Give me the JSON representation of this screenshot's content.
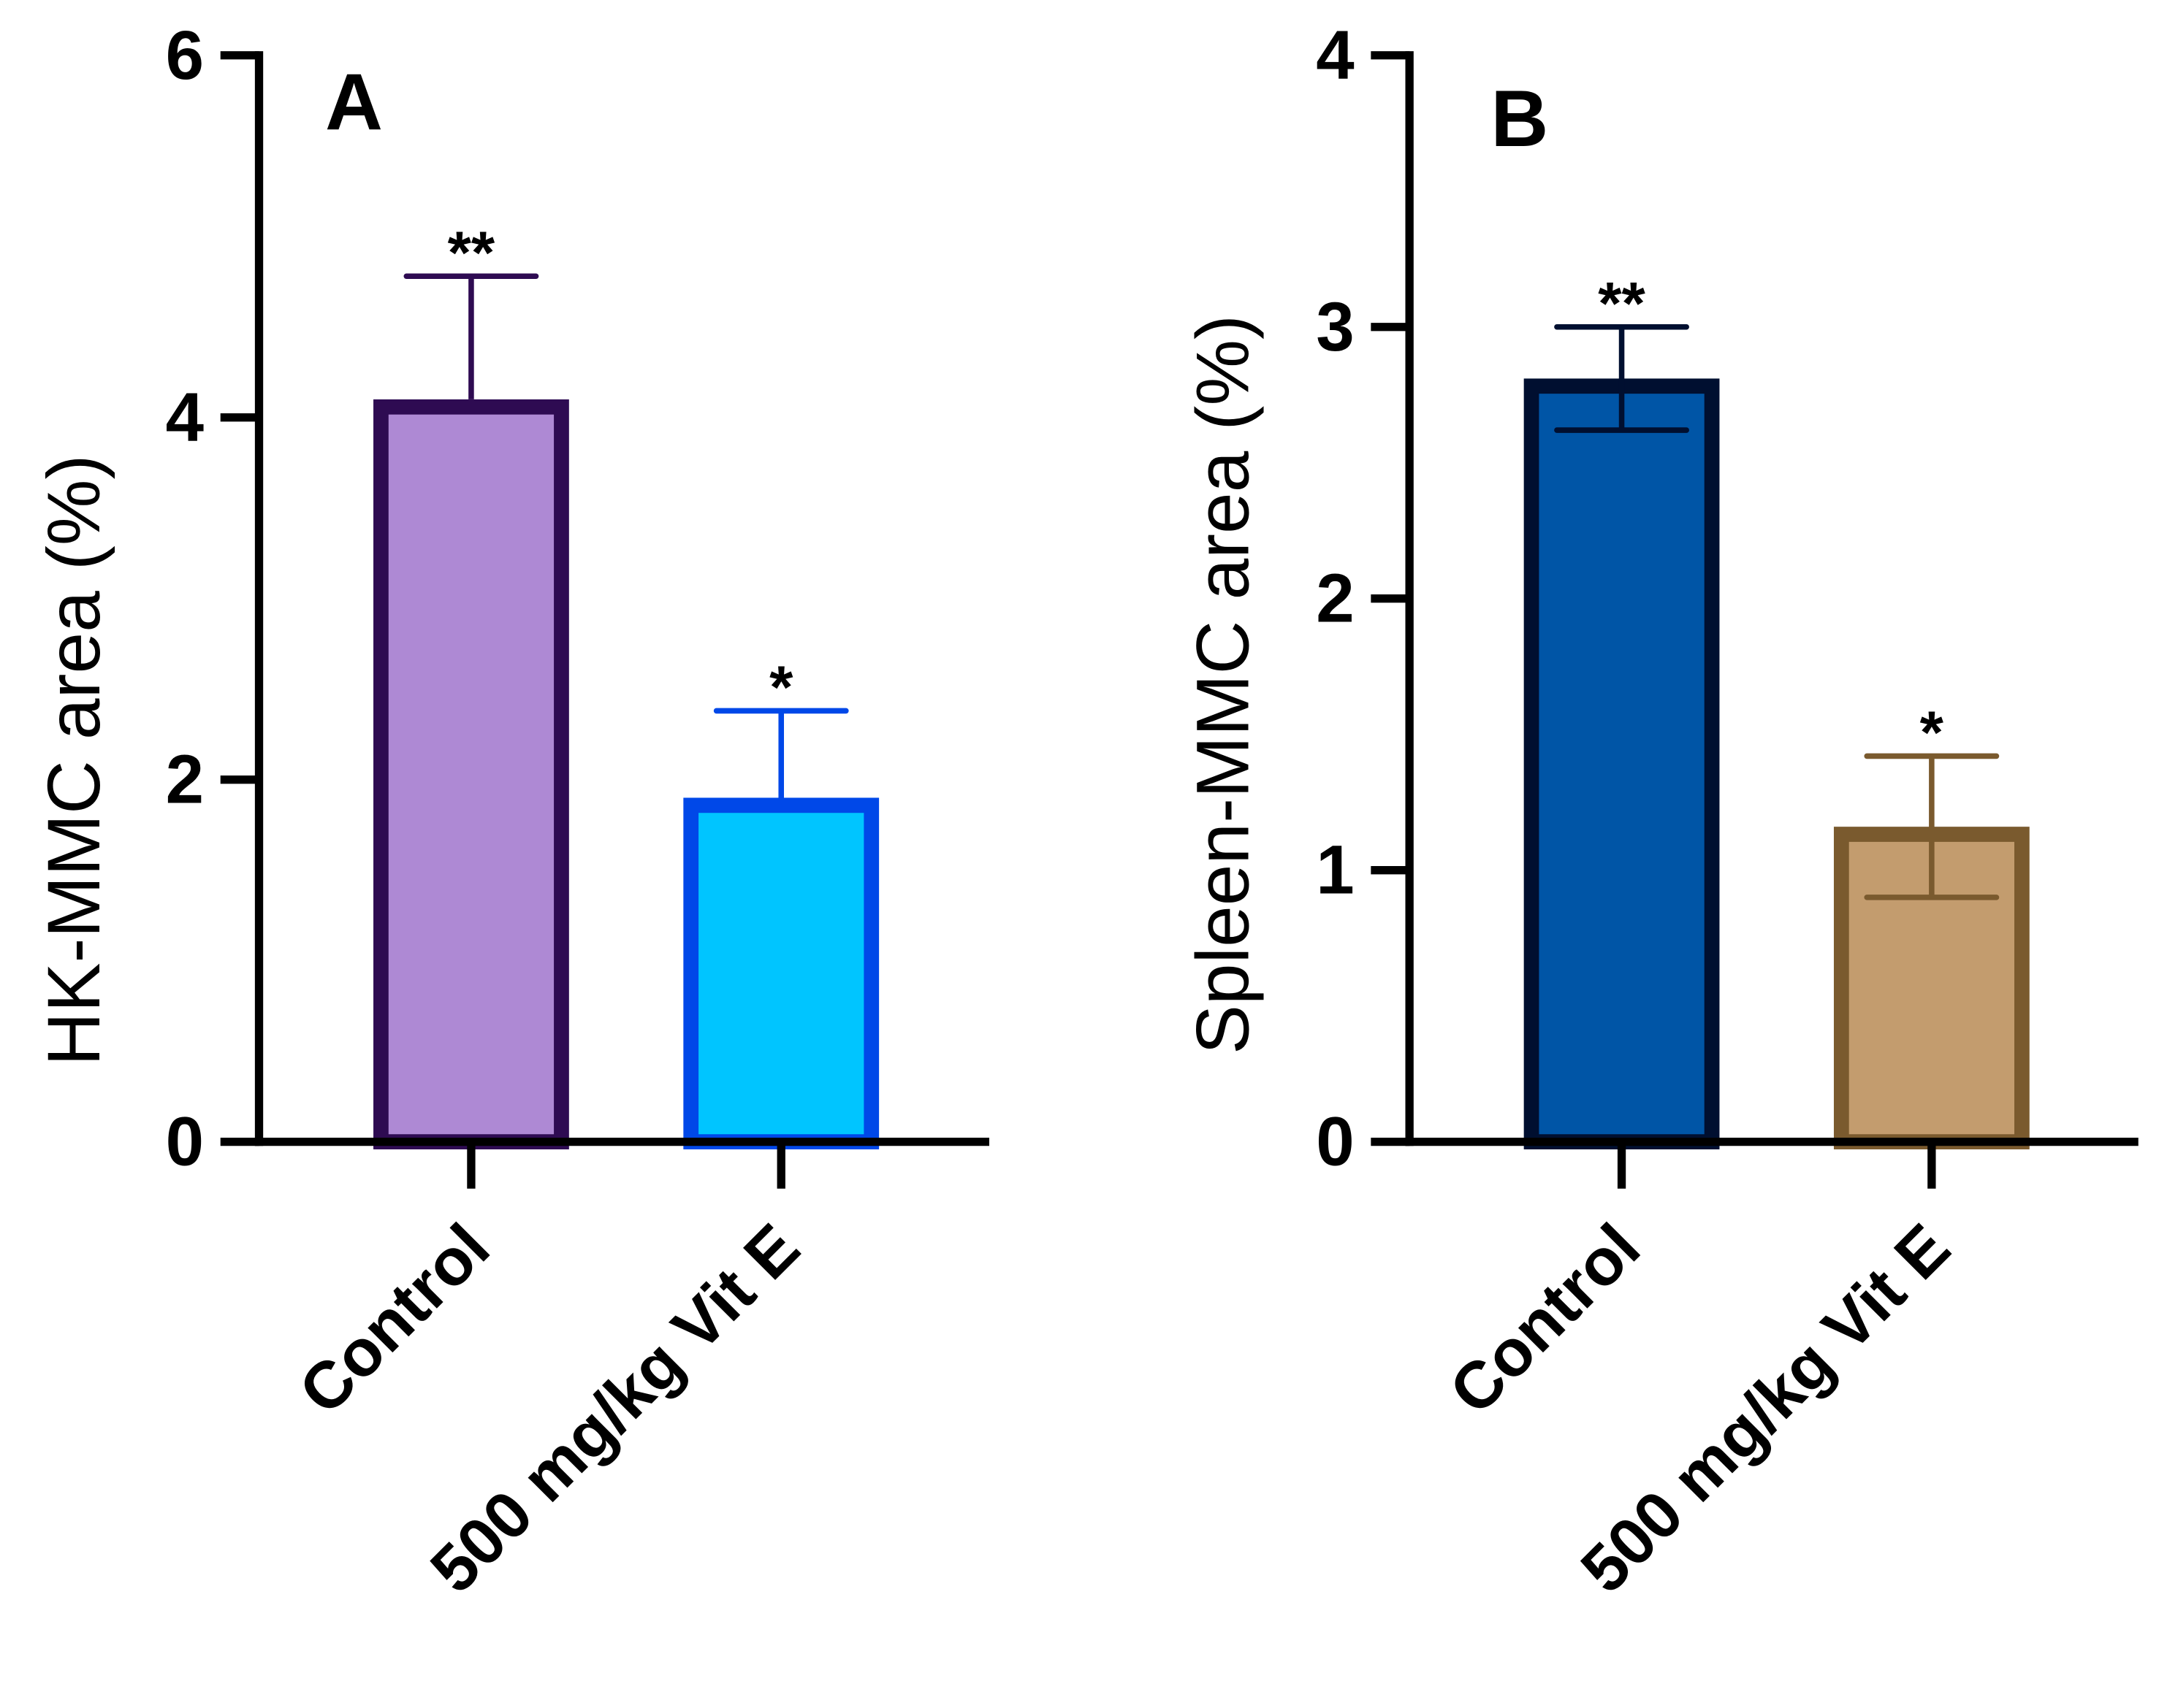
{
  "chart_data": [
    {
      "type": "bar",
      "panel_label": "A",
      "title": "",
      "xlabel": "",
      "ylabel": "HK-MMC area (%)",
      "ylim": [
        0,
        6
      ],
      "yticks": [
        "0",
        "2",
        "4",
        "6"
      ],
      "categories": [
        "Control",
        "500 mg/kg Vit E"
      ],
      "values": [
        4.1,
        1.9
      ],
      "errors": [
        0.68,
        0.48
      ],
      "error_direction": "up",
      "significance": [
        "**",
        "*"
      ],
      "fill_colors": [
        "#ae89d4",
        "#00c5ff"
      ],
      "edge_colors": [
        "#2e0b52",
        "#0048e8"
      ],
      "grid": false
    },
    {
      "type": "bar",
      "panel_label": "B",
      "title": "",
      "xlabel": "",
      "ylabel": "Spleen-MMC area (%)",
      "ylim": [
        0,
        4
      ],
      "yticks": [
        "0",
        "1",
        "2",
        "3",
        "4"
      ],
      "categories": [
        "Control",
        "500 mg/kg Vit E"
      ],
      "values": [
        2.81,
        1.16
      ],
      "errors": [
        0.19,
        0.26
      ],
      "error_direction": "both",
      "significance": [
        "**",
        "*"
      ],
      "fill_colors": [
        "#0055a6",
        "#c39c6e"
      ],
      "edge_colors": [
        "#000f30",
        "#7a5a2e"
      ],
      "grid": false
    }
  ]
}
